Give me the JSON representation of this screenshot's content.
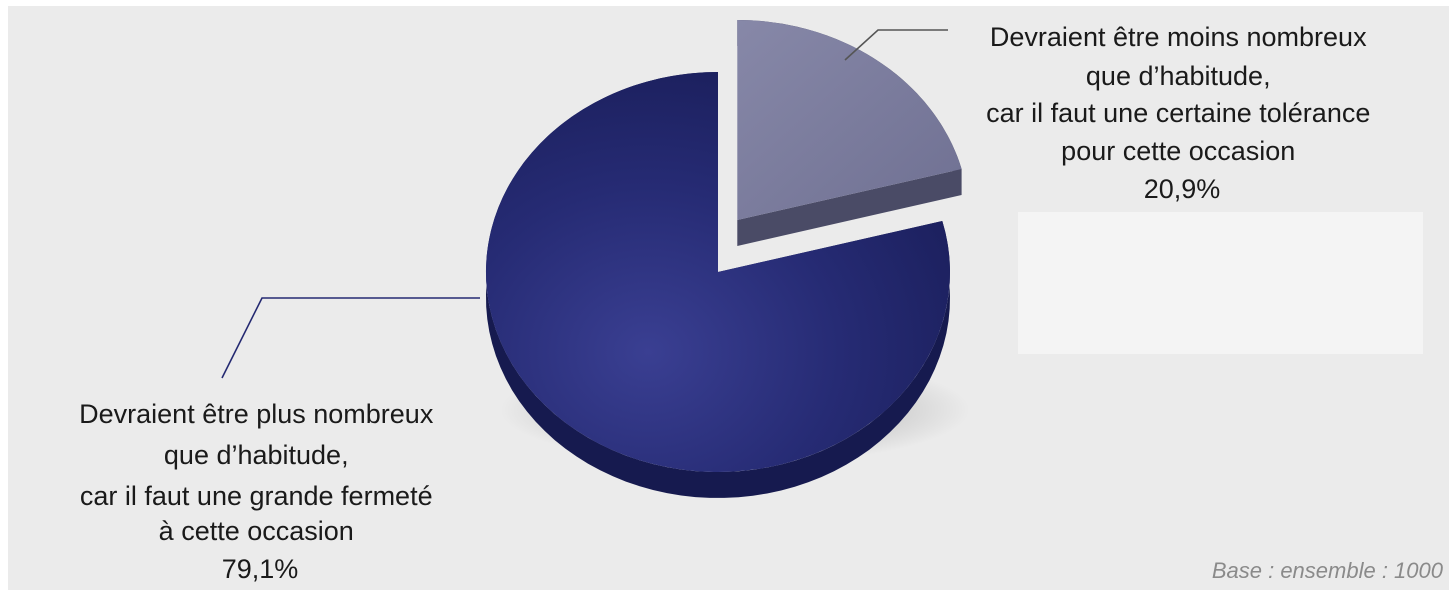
{
  "chart_data": {
    "type": "pie",
    "title": "",
    "slices": [
      {
        "label_lines": [
          "Devraient être plus nombreux",
          "que d’habitude,",
          "car il faut une grande fermeté",
          "à cette occasion"
        ],
        "value": 79.1,
        "value_label": "79,1%",
        "color": "#252a72",
        "side_color": "#161a4f",
        "exploded": false
      },
      {
        "label_lines": [
          "Devraient être moins nombreux",
          "que d’habitude,",
          "car il faut une certaine tolérance",
          "pour cette occasion"
        ],
        "value": 20.9,
        "value_label": "20,9%",
        "color": "#7e7fa0",
        "side_color": "#4a4b66",
        "exploded": true
      }
    ],
    "legend": "none",
    "grid": false
  },
  "footer": {
    "base_note": "Base : ensemble : 1000"
  },
  "colors": {
    "background": "#ebebeb",
    "panel": "#f4f4f4",
    "large_leader": "#252a72",
    "small_leader": "#555555"
  }
}
